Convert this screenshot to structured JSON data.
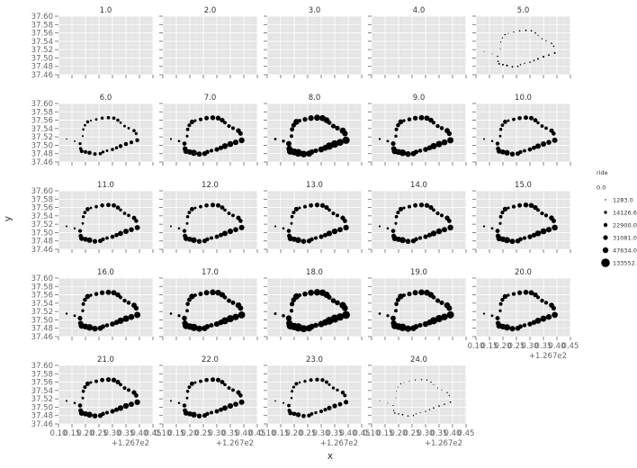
{
  "chart_data": {
    "type": "scatter",
    "facet_labels": [
      "1.0",
      "2.0",
      "3.0",
      "4.0",
      "5.0",
      "6.0",
      "7.0",
      "8.0",
      "9.0",
      "10.0",
      "11.0",
      "12.0",
      "13.0",
      "14.0",
      "15.0",
      "16.0",
      "17.0",
      "18.0",
      "19.0",
      "20.0",
      "21.0",
      "22.0",
      "23.0",
      "24.0"
    ],
    "xlabel": "x",
    "ylabel": "y",
    "x_offset_label": "+1.267e2",
    "x_ticks": [
      "0.10",
      "0.15",
      "0.20",
      "0.25",
      "0.30",
      "0.35",
      "0.40",
      "0.45"
    ],
    "x_tick_values": [
      0.1,
      0.15,
      0.2,
      0.25,
      0.3,
      0.35,
      0.4,
      0.45
    ],
    "y_ticks": [
      "37.46",
      "37.48",
      "37.50",
      "37.52",
      "37.54",
      "37.56",
      "37.58",
      "37.60"
    ],
    "y_tick_values": [
      37.46,
      37.48,
      37.5,
      37.52,
      37.54,
      37.56,
      37.58,
      37.6
    ],
    "xlim": [
      0.1,
      0.45
    ],
    "ylim": [
      37.46,
      37.6
    ],
    "grid": true,
    "legend": {
      "title": "ride",
      "placement": "right",
      "labels": [
        "0.0",
        "1283.0",
        "14126.6",
        "22900.0",
        "31081.0",
        "47634.0",
        "133552.9"
      ],
      "values": [
        0.0,
        1283.0,
        14126.6,
        22900.0,
        31081.0,
        47634.0,
        133552.9
      ]
    },
    "point_color": "#000000",
    "stations": [
      [
        0.13,
        37.515
      ],
      [
        0.16,
        37.51
      ],
      [
        0.18,
        37.504
      ],
      [
        0.182,
        37.492
      ],
      [
        0.186,
        37.486
      ],
      [
        0.2,
        37.484
      ],
      [
        0.215,
        37.482
      ],
      [
        0.235,
        37.479
      ],
      [
        0.255,
        37.48
      ],
      [
        0.265,
        37.484
      ],
      [
        0.28,
        37.487
      ],
      [
        0.3,
        37.49
      ],
      [
        0.315,
        37.494
      ],
      [
        0.33,
        37.498
      ],
      [
        0.35,
        37.503
      ],
      [
        0.37,
        37.507
      ],
      [
        0.392,
        37.512
      ],
      [
        0.388,
        37.528
      ],
      [
        0.38,
        37.535
      ],
      [
        0.36,
        37.541
      ],
      [
        0.345,
        37.546
      ],
      [
        0.33,
        37.554
      ],
      [
        0.32,
        37.56
      ],
      [
        0.305,
        37.565
      ],
      [
        0.285,
        37.566
      ],
      [
        0.262,
        37.565
      ],
      [
        0.24,
        37.562
      ],
      [
        0.22,
        37.559
      ],
      [
        0.208,
        37.556
      ],
      [
        0.198,
        37.548
      ],
      [
        0.192,
        37.538
      ],
      [
        0.19,
        37.522
      ]
    ],
    "station_weights": [
      0.1,
      0.15,
      0.45,
      0.55,
      0.8,
      0.75,
      0.95,
      0.7,
      0.6,
      0.45,
      0.35,
      0.55,
      0.55,
      0.85,
      0.9,
      0.75,
      0.85,
      0.5,
      0.6,
      0.35,
      0.35,
      0.3,
      0.55,
      0.6,
      0.6,
      0.5,
      0.35,
      0.2,
      0.55,
      0.35,
      0.3,
      0.2
    ],
    "hour_totals": [
      0,
      0,
      0,
      0,
      6000,
      28000,
      60000,
      95000,
      70000,
      50000,
      48000,
      52000,
      56000,
      58000,
      62000,
      70000,
      85000,
      110000,
      90000,
      65000,
      56000,
      52000,
      38000,
      4000
    ]
  }
}
